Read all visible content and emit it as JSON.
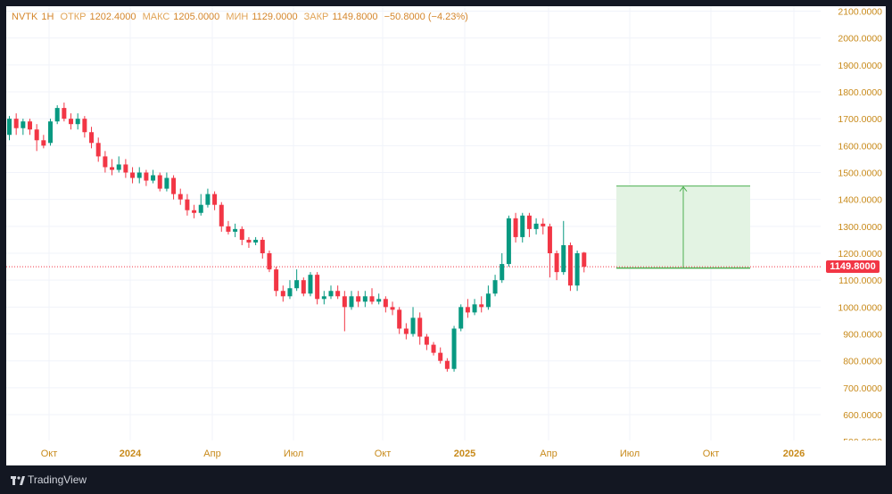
{
  "legend": {
    "symbol": "NVTK",
    "interval": "1Н",
    "open_label": "ОТКР",
    "open": "1202.4000",
    "high_label": "МАКС",
    "high": "1205.0000",
    "low_label": "МИН",
    "low": "1129.0000",
    "close_label": "ЗАКР",
    "close": "1149.8000",
    "change": "−50.8000 (−4.23%)"
  },
  "last_price_label": "1149.8000",
  "brand": "TradingView",
  "colors": {
    "up": "#089981",
    "down": "#f23645",
    "legend": "#d4862c",
    "axis_text": "#c88a1a",
    "position_fill": "#e3f3e3",
    "position_line": "#4caf50"
  },
  "chart_data": {
    "type": "candlestick",
    "symbol": "NVTK",
    "interval": "1W",
    "x_ticks": [
      "Окт",
      "2024",
      "Апр",
      "Июл",
      "Окт",
      "2025",
      "Апр",
      "Июл",
      "Окт",
      "2026"
    ],
    "y_ticks": [
      "500.0000",
      "600.0000",
      "700.0000",
      "800.0000",
      "900.0000",
      "1000.0000",
      "1100.0000",
      "1200.0000",
      "1300.0000",
      "1400.0000",
      "1500.0000",
      "1600.0000",
      "1700.0000",
      "1800.0000",
      "1900.0000",
      "2000.0000",
      "2100.0000"
    ],
    "ylim": [
      500,
      2100
    ],
    "last_price": 1149.8,
    "long_position": {
      "entry": 1145,
      "target": 1450
    },
    "candles": [
      [
        1640,
        1700,
        1710,
        1620
      ],
      [
        1700,
        1665,
        1720,
        1640
      ],
      [
        1665,
        1690,
        1700,
        1640
      ],
      [
        1690,
        1660,
        1700,
        1640
      ],
      [
        1660,
        1620,
        1680,
        1580
      ],
      [
        1620,
        1600,
        1640,
        1590
      ],
      [
        1610,
        1690,
        1700,
        1600
      ],
      [
        1690,
        1740,
        1750,
        1680
      ],
      [
        1740,
        1700,
        1760,
        1690
      ],
      [
        1700,
        1680,
        1720,
        1660
      ],
      [
        1680,
        1700,
        1720,
        1660
      ],
      [
        1700,
        1650,
        1710,
        1630
      ],
      [
        1650,
        1610,
        1670,
        1590
      ],
      [
        1610,
        1560,
        1630,
        1540
      ],
      [
        1560,
        1520,
        1580,
        1500
      ],
      [
        1520,
        1510,
        1550,
        1490
      ],
      [
        1510,
        1530,
        1560,
        1500
      ],
      [
        1530,
        1500,
        1550,
        1480
      ],
      [
        1500,
        1480,
        1520,
        1460
      ],
      [
        1480,
        1500,
        1520,
        1460
      ],
      [
        1500,
        1470,
        1510,
        1450
      ],
      [
        1470,
        1490,
        1510,
        1460
      ],
      [
        1490,
        1440,
        1500,
        1430
      ],
      [
        1440,
        1480,
        1500,
        1430
      ],
      [
        1480,
        1420,
        1490,
        1400
      ],
      [
        1420,
        1400,
        1440,
        1380
      ],
      [
        1400,
        1360,
        1420,
        1340
      ],
      [
        1360,
        1350,
        1380,
        1330
      ],
      [
        1350,
        1380,
        1420,
        1340
      ],
      [
        1380,
        1420,
        1440,
        1370
      ],
      [
        1420,
        1380,
        1430,
        1360
      ],
      [
        1380,
        1300,
        1390,
        1280
      ],
      [
        1300,
        1280,
        1320,
        1270
      ],
      [
        1280,
        1290,
        1310,
        1260
      ],
      [
        1290,
        1250,
        1300,
        1230
      ],
      [
        1250,
        1240,
        1260,
        1220
      ],
      [
        1240,
        1250,
        1260,
        1230
      ],
      [
        1250,
        1200,
        1260,
        1180
      ],
      [
        1200,
        1140,
        1210,
        1130
      ],
      [
        1140,
        1060,
        1150,
        1040
      ],
      [
        1060,
        1040,
        1080,
        1020
      ],
      [
        1040,
        1070,
        1100,
        1030
      ],
      [
        1070,
        1100,
        1140,
        1060
      ],
      [
        1100,
        1050,
        1110,
        1040
      ],
      [
        1050,
        1120,
        1130,
        1040
      ],
      [
        1120,
        1030,
        1130,
        1010
      ],
      [
        1030,
        1040,
        1060,
        1010
      ],
      [
        1040,
        1060,
        1080,
        1030
      ],
      [
        1060,
        1040,
        1080,
        1030
      ],
      [
        1040,
        1000,
        1060,
        910
      ],
      [
        1000,
        1040,
        1060,
        990
      ],
      [
        1040,
        1020,
        1060,
        1000
      ],
      [
        1020,
        1040,
        1060,
        1000
      ],
      [
        1040,
        1020,
        1070,
        1010
      ],
      [
        1020,
        1030,
        1050,
        1010
      ],
      [
        1030,
        1000,
        1040,
        980
      ],
      [
        1000,
        990,
        1020,
        970
      ],
      [
        990,
        920,
        1000,
        900
      ],
      [
        920,
        900,
        940,
        880
      ],
      [
        900,
        960,
        1000,
        890
      ],
      [
        960,
        890,
        980,
        860
      ],
      [
        890,
        860,
        900,
        840
      ],
      [
        860,
        830,
        870,
        820
      ],
      [
        830,
        800,
        850,
        790
      ],
      [
        800,
        770,
        810,
        760
      ],
      [
        770,
        920,
        930,
        760
      ],
      [
        920,
        1000,
        1010,
        910
      ],
      [
        1000,
        980,
        1030,
        960
      ],
      [
        980,
        1010,
        1030,
        970
      ],
      [
        1010,
        1000,
        1040,
        980
      ],
      [
        1000,
        1050,
        1080,
        990
      ],
      [
        1050,
        1100,
        1120,
        1040
      ],
      [
        1100,
        1160,
        1200,
        1090
      ],
      [
        1160,
        1330,
        1340,
        1150
      ],
      [
        1330,
        1260,
        1350,
        1240
      ],
      [
        1260,
        1340,
        1350,
        1240
      ],
      [
        1340,
        1290,
        1350,
        1260
      ],
      [
        1290,
        1310,
        1330,
        1270
      ],
      [
        1310,
        1300,
        1330,
        1270
      ],
      [
        1300,
        1200,
        1310,
        1110
      ],
      [
        1200,
        1130,
        1210,
        1100
      ],
      [
        1130,
        1230,
        1320,
        1120
      ],
      [
        1230,
        1080,
        1240,
        1060
      ],
      [
        1080,
        1200,
        1210,
        1060
      ],
      [
        1202.4,
        1149.8,
        1205,
        1129
      ]
    ]
  }
}
